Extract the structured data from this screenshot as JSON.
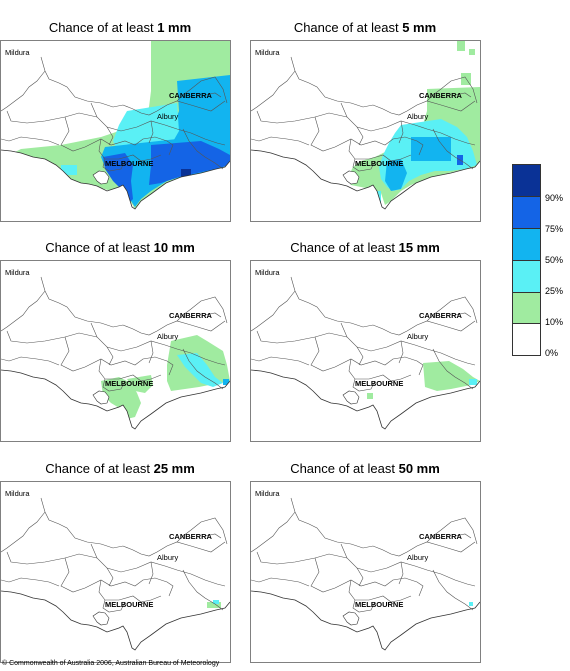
{
  "panels": [
    {
      "prefix": "Chance of at least ",
      "amount": "1 mm",
      "fill": "1"
    },
    {
      "prefix": "Chance of at least ",
      "amount": "5 mm",
      "fill": "5"
    },
    {
      "prefix": "Chance of at least ",
      "amount": "10 mm",
      "fill": "10"
    },
    {
      "prefix": "Chance of at least ",
      "amount": "15 mm",
      "fill": "15"
    },
    {
      "prefix": "Chance of at least ",
      "amount": "25 mm",
      "fill": "25"
    },
    {
      "prefix": "Chance of at least ",
      "amount": "50 mm",
      "fill": "50"
    }
  ],
  "places": {
    "mildura": "Mildura",
    "canberra": "CANBERRA",
    "albury": "Albury",
    "melbourne": "MELBOURNE"
  },
  "legend": {
    "labels": [
      "90%",
      "75%",
      "50%",
      "25%",
      "10%",
      "0%"
    ],
    "colors": [
      "#0a3296",
      "#1464e6",
      "#12b4f0",
      "#5af0f5",
      "#a0eba0",
      "#ffffff"
    ]
  },
  "copyright": "© Commonwealth of Australia 2006, Australian Bureau of Meteorology"
}
